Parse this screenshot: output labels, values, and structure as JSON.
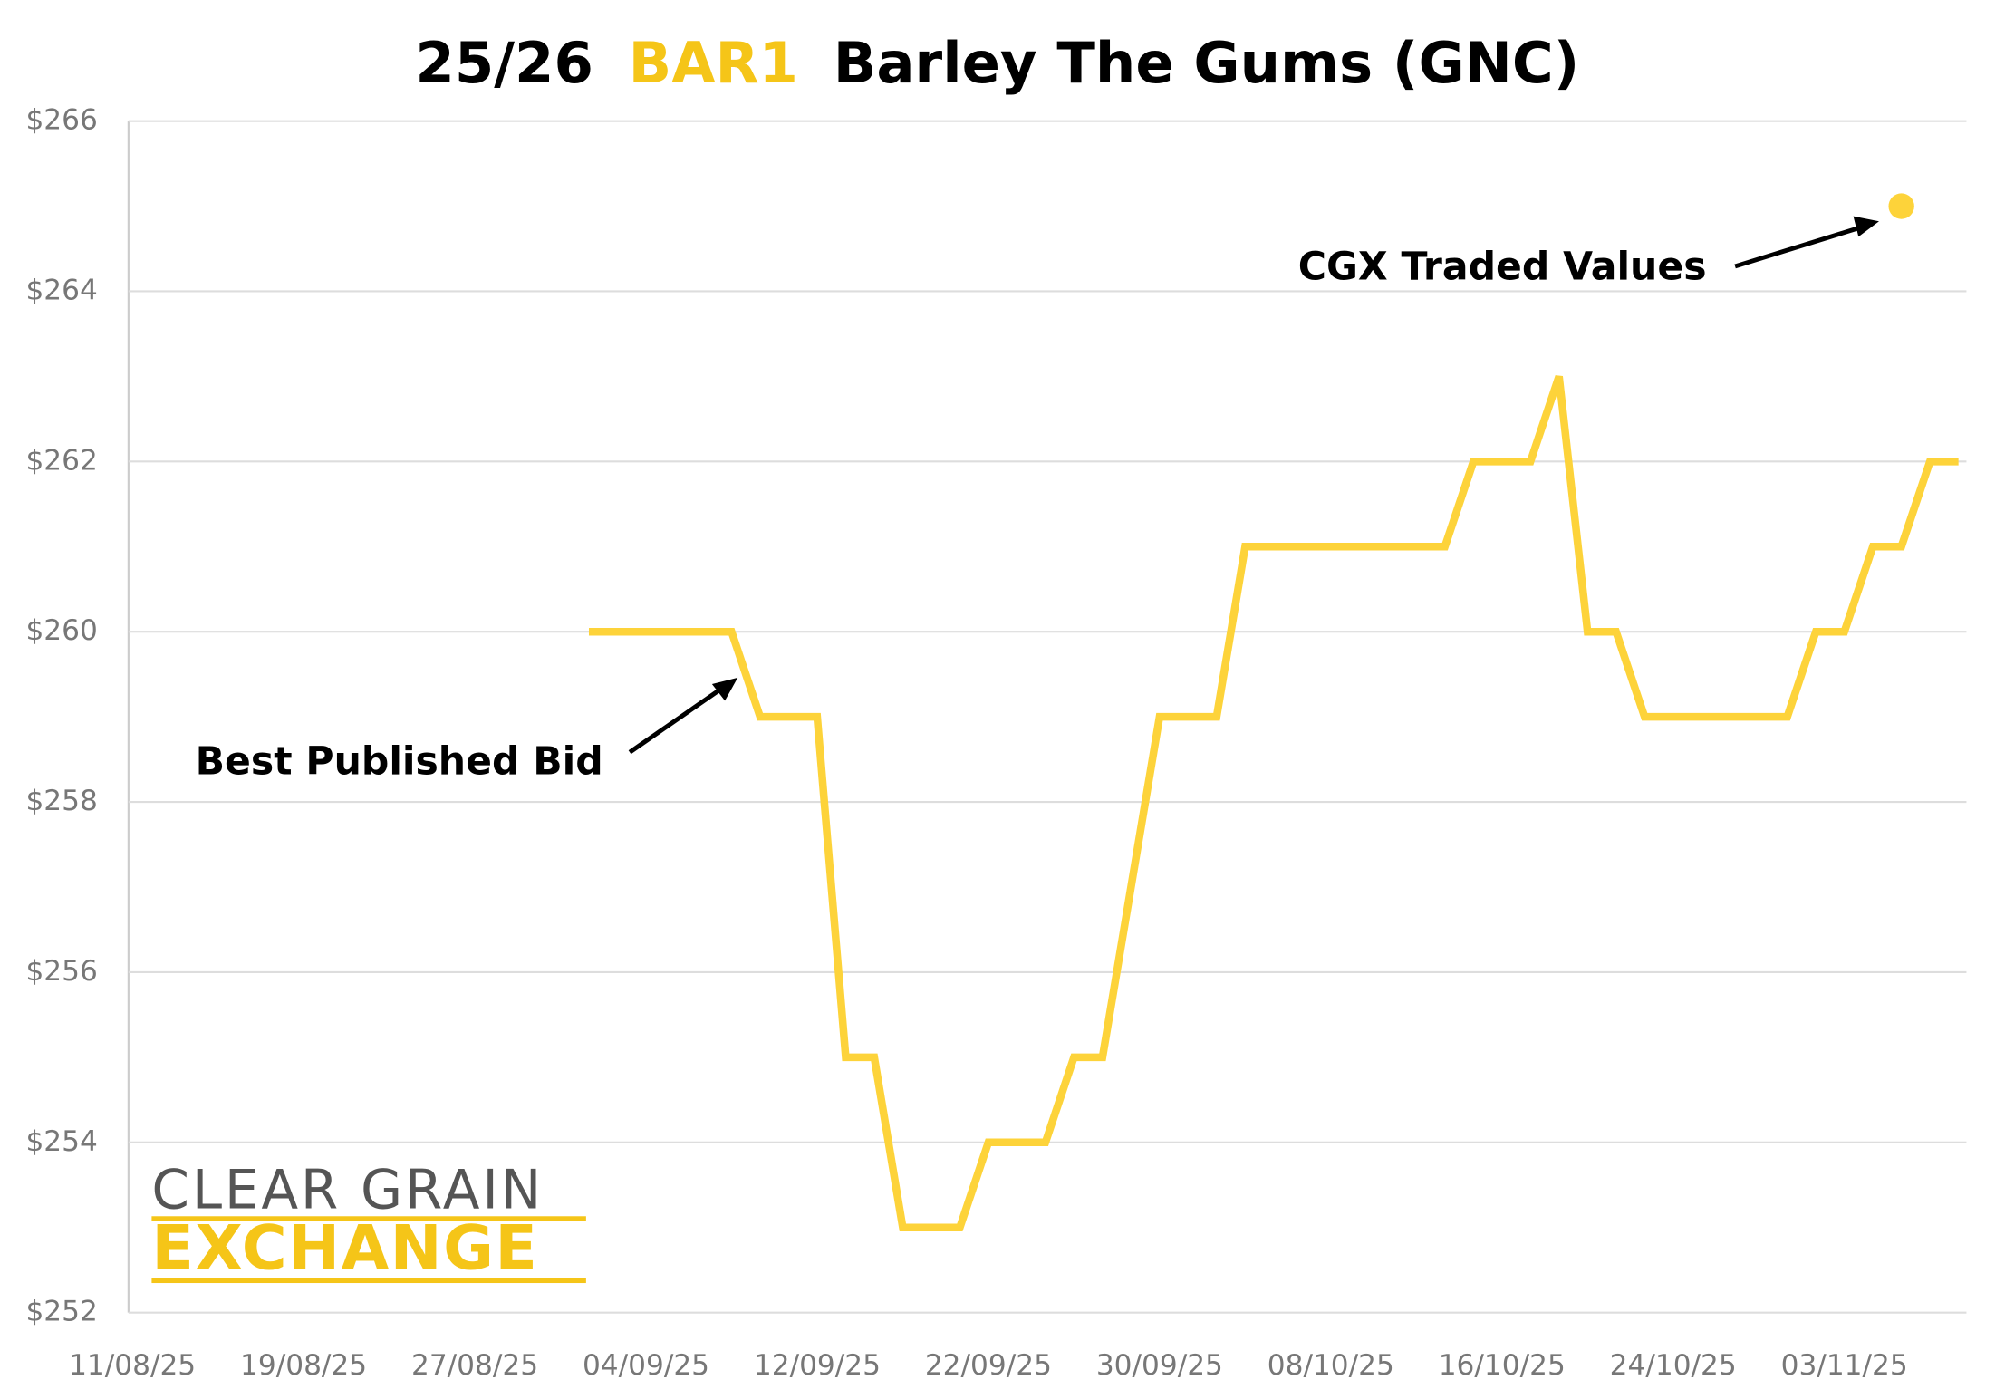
{
  "chart_data": {
    "type": "line",
    "title": [
      "25/26",
      "BAR1",
      "Barley The Gums (GNC)"
    ],
    "title_colors": [
      "#000000",
      "#f5c518",
      "#000000"
    ],
    "categories": [
      "11/08/25",
      null,
      null,
      null,
      null,
      null,
      "19/08/25",
      null,
      null,
      null,
      null,
      null,
      "27/08/25",
      null,
      null,
      null,
      null,
      null,
      "04/09/25",
      null,
      null,
      null,
      null,
      null,
      "12/09/25",
      null,
      null,
      null,
      null,
      null,
      "22/09/25",
      null,
      null,
      null,
      null,
      null,
      "30/09/25",
      null,
      null,
      null,
      null,
      null,
      "08/10/25",
      null,
      null,
      null,
      null,
      null,
      "16/10/25",
      null,
      null,
      null,
      null,
      null,
      "24/10/25",
      null,
      null,
      null,
      null,
      null,
      "03/11/25",
      null,
      null,
      null,
      null
    ],
    "series": [
      {
        "name": "Best Published Bid",
        "color": "#fdd33a",
        "values": [
          null,
          null,
          null,
          null,
          null,
          null,
          null,
          null,
          null,
          null,
          null,
          null,
          null,
          null,
          null,
          null,
          260,
          260,
          260,
          260,
          260,
          260,
          259,
          259,
          259,
          255,
          255,
          253,
          253,
          253,
          254,
          254,
          254,
          255,
          255,
          257,
          259,
          259,
          259,
          261,
          261,
          261,
          261,
          261,
          261,
          261,
          261,
          262,
          262,
          262,
          263,
          260,
          260,
          259,
          259,
          259,
          259,
          259,
          259,
          260,
          260,
          261,
          261,
          262,
          262
        ]
      },
      {
        "name": "CGX Traded Values",
        "color": "#fdd33a",
        "mark": "dot",
        "values": [
          null,
          null,
          null,
          null,
          null,
          null,
          null,
          null,
          null,
          null,
          null,
          null,
          null,
          null,
          null,
          null,
          null,
          null,
          null,
          null,
          null,
          null,
          null,
          null,
          null,
          null,
          null,
          null,
          null,
          null,
          null,
          null,
          null,
          null,
          null,
          null,
          null,
          null,
          null,
          null,
          null,
          null,
          null,
          null,
          null,
          null,
          null,
          null,
          null,
          null,
          null,
          null,
          null,
          null,
          null,
          null,
          null,
          null,
          null,
          null,
          null,
          null,
          265,
          null,
          null
        ]
      }
    ],
    "ylim": [
      252,
      266
    ],
    "yticks": [
      {
        "value": 252,
        "label": "$252"
      },
      {
        "value": 254,
        "label": "$254"
      },
      {
        "value": 256,
        "label": "$256"
      },
      {
        "value": 258,
        "label": "$258"
      },
      {
        "value": 260,
        "label": "$260"
      },
      {
        "value": 262,
        "label": "$262"
      },
      {
        "value": 264,
        "label": "$264"
      },
      {
        "value": 266,
        "label": "$266"
      }
    ],
    "grid": true,
    "logo": {
      "line1": "CLEAR GRAIN",
      "line2": "EXCHANGE"
    }
  }
}
